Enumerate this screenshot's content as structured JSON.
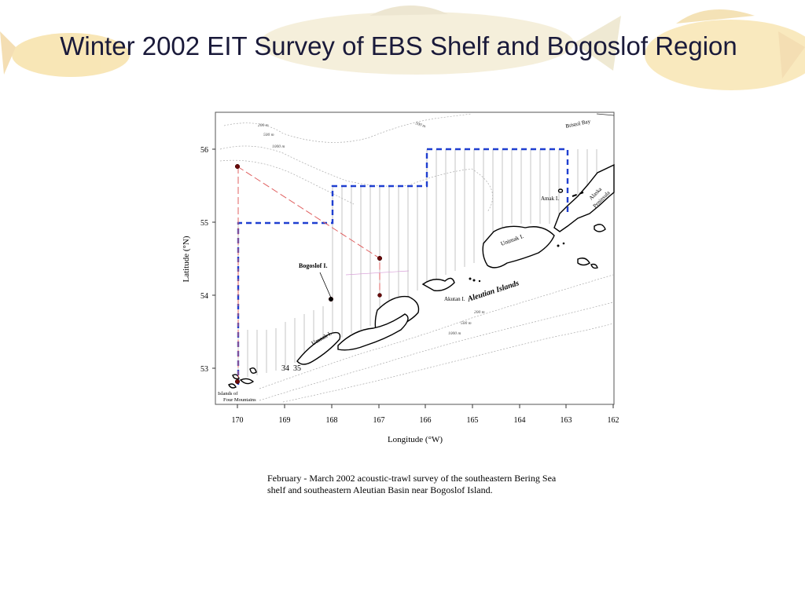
{
  "slide": {
    "title": "Winter 2002 EIT Survey of EBS Shelf and Bogoslof Region",
    "caption_line1": "February - March 2002 acoustic-trawl survey of the southeastern Bering Sea",
    "caption_line2": "shelf and southeastern Aleutian Basin near Bogoslof Island."
  },
  "map": {
    "y_axis_label": "Latitude (°N)",
    "x_axis_label": "Longitude (°W)",
    "lat_ticks": [
      "56",
      "55",
      "54",
      "53"
    ],
    "lon_ticks": [
      "170",
      "169",
      "168",
      "167",
      "166",
      "165",
      "164",
      "163",
      "162"
    ],
    "labels": {
      "bristol_bay": "Bristol Bay",
      "alaska_peninsula_1": "Alaska",
      "alaska_peninsula_2": "Peninsula",
      "amak": "Amak I.",
      "unimak": "Unimak I.",
      "bogoslof": "Bogoslof I.",
      "aleutian_islands": "Aleutian Islands",
      "akutan": "Akutan I.",
      "umnak": "Umnak I.",
      "islands_four_mountains_1": "Islands of",
      "islands_four_mountains_2": "Four Mountains",
      "num_34": "34",
      "num_35": "35",
      "d200_a": "200 m",
      "d500_a": "500 m",
      "d1000_a": "1000 m",
      "d500_top": "500 m",
      "d200_b": "200 m",
      "d500_b": "500 m",
      "d1000_b": "1000 m"
    },
    "colors": {
      "survey_boundary": "#1f3fd0",
      "trackline": "#e06060",
      "transect": "#b0b0b0",
      "station": "#6a0a0a"
    }
  }
}
